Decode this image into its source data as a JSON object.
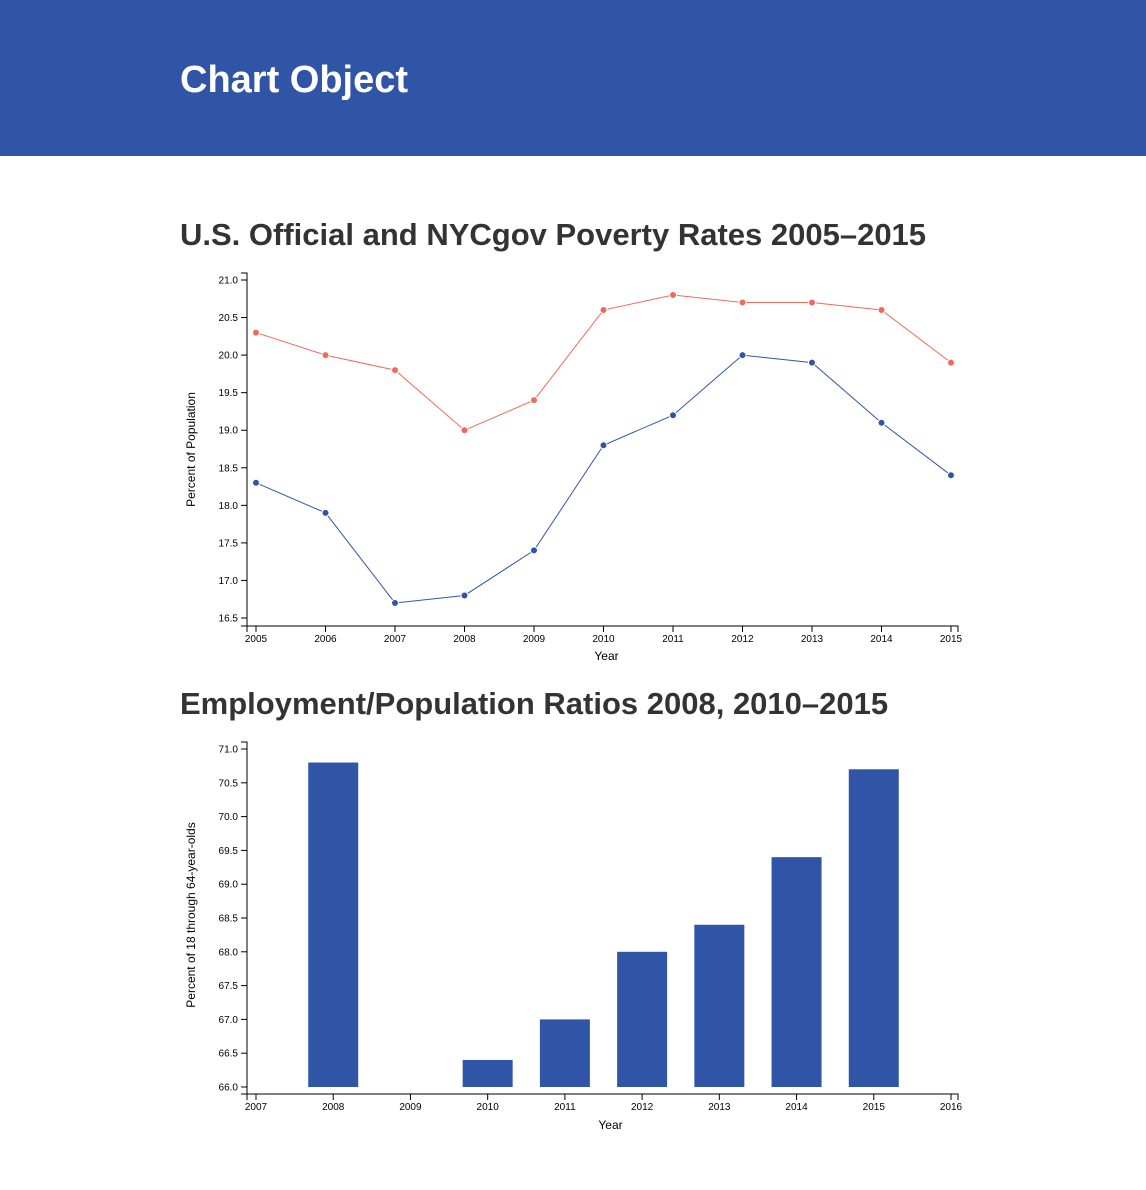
{
  "header": {
    "title": "Chart Object"
  },
  "colors": {
    "header_bg": "#3155a6",
    "series_nycgov": "#f06a5a",
    "series_official": "#3155a6",
    "bar": "#3155a6"
  },
  "chart_data": [
    {
      "type": "line",
      "title": "U.S. Official and NYCgov Poverty Rates 2005–2015",
      "xlabel": "Year",
      "ylabel": "Percent of Population",
      "x": [
        2005,
        2006,
        2007,
        2008,
        2009,
        2010,
        2011,
        2012,
        2013,
        2014,
        2015
      ],
      "x_ticks": [
        "2005",
        "2006",
        "2007",
        "2008",
        "2009",
        "2010",
        "2011",
        "2012",
        "2013",
        "2014",
        "2015"
      ],
      "ylim": [
        16.5,
        21.0
      ],
      "y_ticks": [
        "16.5",
        "17.0",
        "17.5",
        "18.0",
        "18.5",
        "19.0",
        "19.5",
        "20.0",
        "20.5",
        "21.0"
      ],
      "grid": false,
      "series": [
        {
          "color": "#f06a5a",
          "values": [
            20.3,
            20.0,
            19.8,
            19.0,
            19.4,
            20.6,
            20.8,
            20.7,
            20.7,
            20.6,
            19.9
          ]
        },
        {
          "color": "#3155a6",
          "values": [
            18.3,
            17.9,
            16.7,
            16.8,
            17.4,
            18.8,
            19.2,
            20.0,
            19.9,
            19.1,
            18.4
          ]
        }
      ]
    },
    {
      "type": "bar",
      "title": "Employment/Population Ratios 2008, 2010–2015",
      "xlabel": "Year",
      "ylabel": "Percent of 18 through 64-year-olds",
      "x_ticks": [
        "2007",
        "2008",
        "2009",
        "2010",
        "2011",
        "2012",
        "2013",
        "2014",
        "2015",
        "2016"
      ],
      "xlim": [
        2007,
        2016
      ],
      "ylim": [
        66.0,
        71.0
      ],
      "y_ticks": [
        "66.0",
        "66.5",
        "67.0",
        "67.5",
        "68.0",
        "68.5",
        "69.0",
        "69.5",
        "70.0",
        "70.5",
        "71.0"
      ],
      "grid": false,
      "categories": [
        2008,
        2010,
        2011,
        2012,
        2013,
        2014,
        2015
      ],
      "values": [
        70.8,
        66.4,
        67.0,
        68.0,
        68.4,
        69.4,
        70.7
      ]
    }
  ]
}
